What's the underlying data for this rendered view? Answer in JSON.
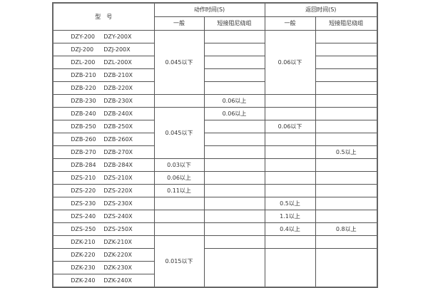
{
  "header": {
    "model": "型　号",
    "action": "动作时间(S)",
    "return": "返回时间(S)",
    "general": "一般",
    "short": "短接阻尼绕组"
  },
  "models": [
    {
      "a": "DZY-200",
      "b": "DZY-200X"
    },
    {
      "a": "DZJ-200",
      "b": "DZJ-200X"
    },
    {
      "a": "DZL-200",
      "b": "DZL-200X"
    },
    {
      "a": "DZB-210",
      "b": "DZB-210X"
    },
    {
      "a": "DZB-220",
      "b": "DZB-220X"
    },
    {
      "a": "DZB-230",
      "b": "DZB-230X"
    },
    {
      "a": "DZB-240",
      "b": "DZB-240X"
    },
    {
      "a": "DZB-250",
      "b": "DZB-250X"
    },
    {
      "a": "DZB-260",
      "b": "DZB-260X"
    },
    {
      "a": "DZB-270",
      "b": "DZB-270X"
    },
    {
      "a": "DZB-284",
      "b": "DZB-284X"
    },
    {
      "a": "DZS-210",
      "b": "DZS-210X"
    },
    {
      "a": "DZS-220",
      "b": "DZS-220X"
    },
    {
      "a": "DZS-230",
      "b": "DZS-230X"
    },
    {
      "a": "DZS-240",
      "b": "DZS-240X"
    },
    {
      "a": "DZS-250",
      "b": "DZS-250X"
    },
    {
      "a": "DZK-210",
      "b": "DZK-210X"
    },
    {
      "a": "DZK-220",
      "b": "DZK-220X"
    },
    {
      "a": "DZK-230",
      "b": "DZK-230X"
    },
    {
      "a": "DZK-240",
      "b": "DZK-240X"
    }
  ],
  "action_general": {
    "g1": "0.045以下",
    "g2": "0.045以下",
    "dzb284": "0.03以下",
    "dzs210": "0.06以上",
    "dzs220": "0.11以上",
    "dzk": "0.015以下"
  },
  "action_short": {
    "dzb230": "0.06以上",
    "dzb240": "0.06以上"
  },
  "return_general": {
    "g1": "0.06以下",
    "dzb250": "0.06以下",
    "dzs230": "0.5以上",
    "dzs240": "1.1以上",
    "dzs250": "0.4以上"
  },
  "return_short": {
    "dzb270": "0.5以上",
    "dzs250": "0.8以上"
  }
}
